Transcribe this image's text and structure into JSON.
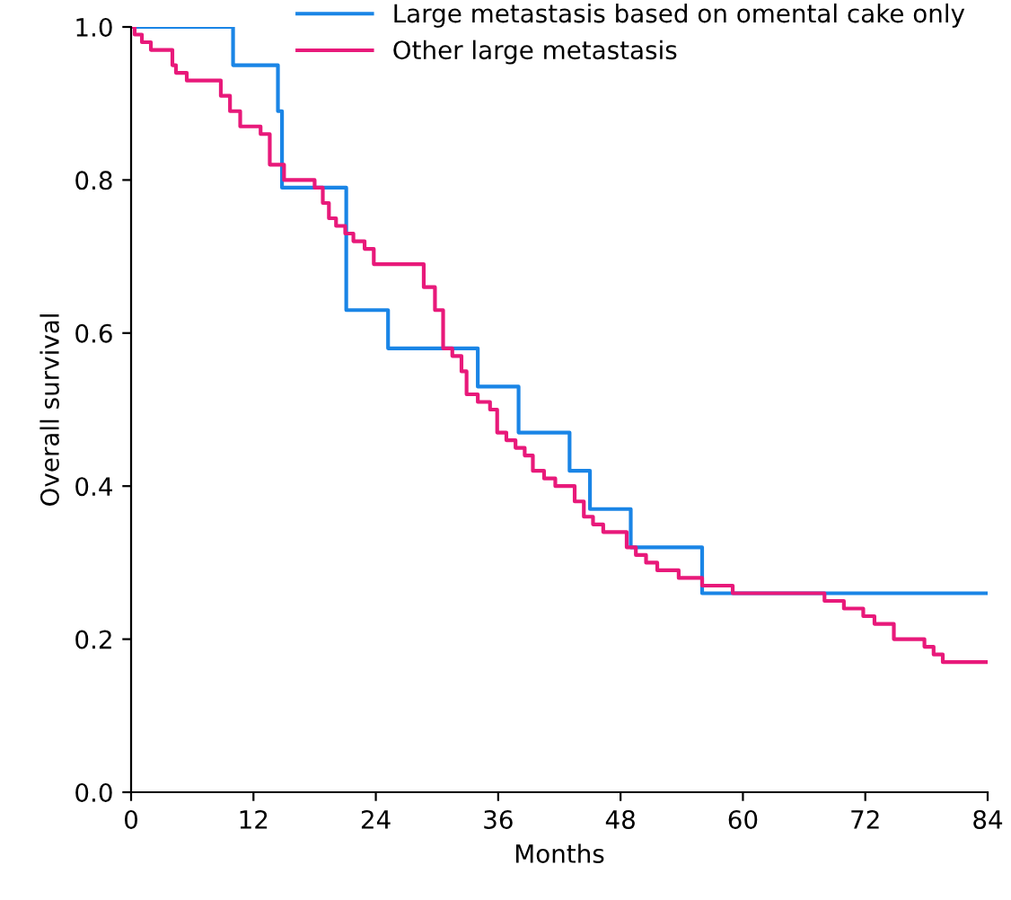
{
  "chart_data": {
    "type": "step",
    "xlabel": "Months",
    "ylabel": "Overall survival",
    "xlim": [
      0,
      84
    ],
    "xticks": [
      0,
      12,
      24,
      36,
      48,
      60,
      72,
      84
    ],
    "ylim": [
      0,
      1
    ],
    "yticks": [
      {
        "value": 0,
        "label": "0.0"
      },
      0.2,
      0.4,
      0.6,
      0.8,
      {
        "value": 1,
        "label": "1.0"
      }
    ],
    "grid": false,
    "legend": "top right",
    "series": [
      {
        "name": "Large metastasis based on omental cake only",
        "color": "#1a85e6",
        "x": [
          0,
          10,
          14.4,
          14.8,
          21.1,
          25.2,
          34,
          38,
          43,
          45,
          49,
          56,
          84
        ],
        "values": [
          1.0,
          0.95,
          0.89,
          0.79,
          0.63,
          0.58,
          0.53,
          0.47,
          0.42,
          0.37,
          0.32,
          0.26,
          0.26
        ]
      },
      {
        "name": "Other large metastasis",
        "color": "#e8197a",
        "x": [
          0,
          0.35,
          1.06,
          1.94,
          4.05,
          4.4,
          5.46,
          6.5,
          8.8,
          9.7,
          10.7,
          12.7,
          13.6,
          15.0,
          18.0,
          18.8,
          19.4,
          20.1,
          21.0,
          21.8,
          22.9,
          23.8,
          26.8,
          28.7,
          29.8,
          30.6,
          31.5,
          32.4,
          32.9,
          34.0,
          35.2,
          35.9,
          36.8,
          37.7,
          38.6,
          39.4,
          40.5,
          41.6,
          43.5,
          44.4,
          45.3,
          46.3,
          48.6,
          49.5,
          50.5,
          51.6,
          53.7,
          56.0,
          59.0,
          66.9,
          68.0,
          69.9,
          71.8,
          72.9,
          74.8,
          77.8,
          78.7,
          79.6,
          84
        ],
        "values": [
          1.0,
          0.99,
          0.98,
          0.97,
          0.95,
          0.94,
          0.93,
          0.93,
          0.91,
          0.89,
          0.87,
          0.86,
          0.82,
          0.8,
          0.79,
          0.77,
          0.75,
          0.74,
          0.73,
          0.72,
          0.71,
          0.69,
          0.69,
          0.66,
          0.63,
          0.58,
          0.57,
          0.55,
          0.52,
          0.51,
          0.5,
          0.47,
          0.46,
          0.45,
          0.44,
          0.42,
          0.41,
          0.4,
          0.38,
          0.36,
          0.35,
          0.34,
          0.32,
          0.31,
          0.3,
          0.29,
          0.28,
          0.27,
          0.26,
          0.26,
          0.25,
          0.24,
          0.23,
          0.22,
          0.2,
          0.19,
          0.18,
          0.17,
          0.17
        ]
      }
    ]
  }
}
